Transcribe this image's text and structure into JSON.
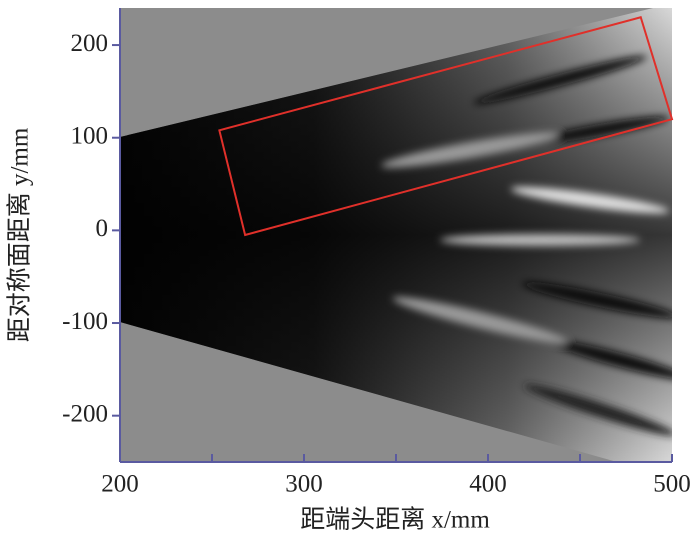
{
  "chart_data": {
    "type": "image",
    "xlabel": "距端头距离 x/mm",
    "ylabel": "距对称面距离 y/mm",
    "xlim": [
      200,
      500
    ],
    "ylim": [
      -250,
      240
    ],
    "xticks": [
      200,
      300,
      400,
      500
    ],
    "xminorticks": [
      250,
      350,
      450
    ],
    "yticks": [
      -200,
      -100,
      0,
      100,
      200
    ],
    "axis_color": "#5a5aa0",
    "region": {
      "color": "#e0302a",
      "x": [
        254,
        483,
        500,
        268
      ],
      "y": [
        108,
        230,
        120,
        -5
      ]
    }
  }
}
